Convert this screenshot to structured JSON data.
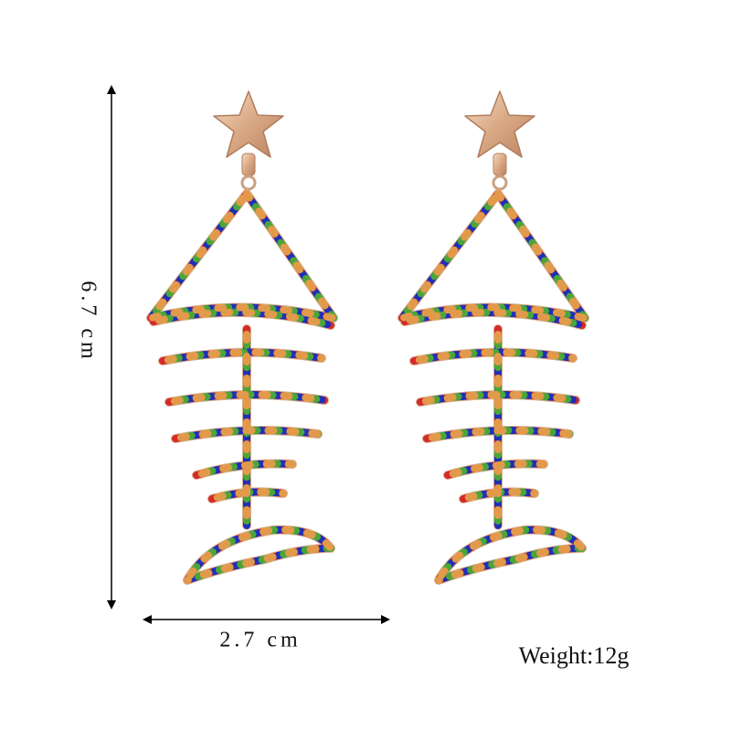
{
  "labels": {
    "height": "6.7 cm",
    "width": "2.7 cm",
    "weight": "Weight:12g"
  }
}
